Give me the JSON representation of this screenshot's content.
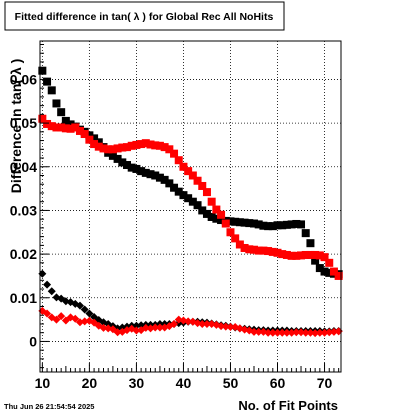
{
  "chart_data": {
    "type": "scatter",
    "title": "Fitted difference in tan( λ ) for Global Rec All NoHits",
    "xlabel": "No. of Fit Points",
    "ylabel": "Difference in tan( λ )",
    "xlim": [
      9.5,
      73.5
    ],
    "ylim": [
      -0.007,
      0.0688
    ],
    "x_ticks": [
      10,
      20,
      30,
      40,
      50,
      60,
      70
    ],
    "y_ticks": [
      0,
      0.01,
      0.02,
      0.03,
      0.04,
      0.05,
      0.06
    ],
    "x_tick_labels": [
      "10",
      "20",
      "30",
      "40",
      "50",
      "60",
      "70"
    ],
    "y_tick_labels": [
      "0",
      "0.01",
      "0.02",
      "0.03",
      "0.04",
      "0.05",
      "0.06"
    ],
    "grid": true,
    "x": [
      10,
      11,
      12,
      13,
      14,
      15,
      16,
      17,
      18,
      19,
      20,
      21,
      22,
      23,
      24,
      25,
      26,
      27,
      28,
      29,
      30,
      31,
      32,
      33,
      34,
      35,
      36,
      37,
      38,
      39,
      40,
      41,
      42,
      43,
      44,
      45,
      46,
      47,
      48,
      49,
      50,
      51,
      52,
      53,
      54,
      55,
      56,
      57,
      58,
      59,
      60,
      61,
      62,
      63,
      64,
      65,
      66,
      67,
      68,
      69,
      70,
      71,
      72,
      73
    ],
    "series": [
      {
        "color": "#000000",
        "marker": "square",
        "values": [
          0.062,
          0.0595,
          0.0575,
          0.0545,
          0.0525,
          0.0505,
          0.0497,
          0.0492,
          0.0485,
          0.048,
          0.0472,
          0.0465,
          0.0456,
          0.0445,
          0.0432,
          0.0425,
          0.0418,
          0.041,
          0.0404,
          0.0398,
          0.0395,
          0.039,
          0.0386,
          0.0383,
          0.038,
          0.0375,
          0.037,
          0.0362,
          0.0352,
          0.0343,
          0.0335,
          0.0328,
          0.032,
          0.0312,
          0.03,
          0.0292,
          0.0285,
          0.0281,
          0.0278,
          0.0276,
          0.0275,
          0.0274,
          0.0273,
          0.0272,
          0.0271,
          0.027,
          0.0268,
          0.0265,
          0.0264,
          0.0264,
          0.0266,
          0.0266,
          0.0267,
          0.0268,
          0.0269,
          0.0268,
          0.0248,
          0.0225,
          0.0185,
          0.0168,
          0.016,
          0.0157,
          0.0155,
          0.0154
        ]
      },
      {
        "color": "#ff0000",
        "marker": "square",
        "values": [
          0.051,
          0.0498,
          0.0493,
          0.049,
          0.049,
          0.0488,
          0.0487,
          0.049,
          0.0482,
          0.0475,
          0.0462,
          0.0452,
          0.0446,
          0.0442,
          0.044,
          0.044,
          0.0442,
          0.0444,
          0.0445,
          0.0448,
          0.045,
          0.0452,
          0.0454,
          0.0451,
          0.0449,
          0.0448,
          0.0445,
          0.044,
          0.043,
          0.0415,
          0.04,
          0.039,
          0.038,
          0.0368,
          0.0356,
          0.0342,
          0.032,
          0.0302,
          0.029,
          0.027,
          0.025,
          0.0236,
          0.0222,
          0.0214,
          0.0211,
          0.021,
          0.0208,
          0.0208,
          0.0207,
          0.0205,
          0.0203,
          0.02,
          0.0198,
          0.0196,
          0.0196,
          0.0197,
          0.0198,
          0.0198,
          0.0198,
          0.0197,
          0.0193,
          0.018,
          0.016,
          0.015
        ]
      },
      {
        "color": "#000000",
        "marker": "diamond",
        "values": [
          0.0155,
          0.013,
          0.0115,
          0.0101,
          0.0098,
          0.0092,
          0.009,
          0.0086,
          0.0082,
          0.0073,
          0.0064,
          0.0056,
          0.0049,
          0.0044,
          0.004,
          0.0035,
          0.003,
          0.0032,
          0.0034,
          0.0036,
          0.0036,
          0.0037,
          0.0038,
          0.0038,
          0.0038,
          0.004,
          0.004,
          0.004,
          0.004,
          0.0042,
          0.0043,
          0.0045,
          0.0045,
          0.0045,
          0.0044,
          0.0043,
          0.0041,
          0.0039,
          0.0037,
          0.0036,
          0.0034,
          0.0032,
          0.003,
          0.0029,
          0.0028,
          0.0027,
          0.0026,
          0.0026,
          0.0025,
          0.0025,
          0.0025,
          0.0025,
          0.0025,
          0.0024,
          0.0024,
          0.0024,
          0.0024,
          0.0024,
          0.0024,
          0.0024,
          0.0023,
          0.0023,
          0.0024,
          0.0024
        ]
      },
      {
        "color": "#ff0000",
        "marker": "diamond",
        "values": [
          0.007,
          0.0064,
          0.0055,
          0.005,
          0.0058,
          0.0048,
          0.0055,
          0.0052,
          0.0044,
          0.0046,
          0.0047,
          0.0043,
          0.0036,
          0.0031,
          0.003,
          0.0028,
          0.0021,
          0.0022,
          0.0026,
          0.0029,
          0.0025,
          0.0026,
          0.0031,
          0.003,
          0.0032,
          0.0032,
          0.0032,
          0.0035,
          0.004,
          0.005,
          0.0048,
          0.0046,
          0.0045,
          0.0042,
          0.004,
          0.004,
          0.004,
          0.0038,
          0.0035,
          0.0034,
          0.0033,
          0.0033,
          0.003,
          0.0027,
          0.0025,
          0.0022,
          0.0022,
          0.0022,
          0.002,
          0.002,
          0.002,
          0.002,
          0.002,
          0.002,
          0.0021,
          0.0021,
          0.002,
          0.002,
          0.0019,
          0.002,
          0.002,
          0.0021,
          0.0022,
          0.0023
        ]
      }
    ]
  },
  "timestamp": "Thu Jun 26 21:54:54 2025"
}
